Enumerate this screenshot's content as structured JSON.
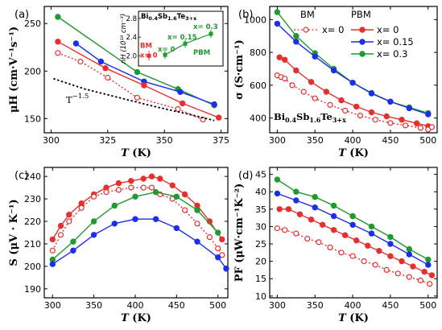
{
  "colors": {
    "BM": "#e53030",
    "PBM": "#e53030",
    "x0.15": "#1c2ee8",
    "x0.3": "#1e9a2e",
    "T15": "#000000"
  },
  "chart_data": [
    {
      "panel": "(a)",
      "type": "line",
      "xlabel": "T (K)",
      "ylabel": "μH (cm·V⁻¹s⁻¹)",
      "xlim": [
        297,
        378
      ],
      "ylim": [
        135,
        268
      ],
      "xticks": [
        300,
        325,
        350,
        375
      ],
      "yticks": [
        150,
        200,
        250
      ],
      "series": [
        {
          "name": "x= 0.3",
          "style": "solid",
          "marker": "filled",
          "color": "#1e9a2e",
          "x": [
            303,
            338,
            356,
            372
          ],
          "y": [
            257,
            199,
            181,
            164
          ]
        },
        {
          "name": "x= 0.15",
          "style": "solid",
          "marker": "filled",
          "color": "#1c2ee8",
          "x": [
            311,
            322,
            341,
            357,
            372
          ],
          "y": [
            229,
            210,
            189,
            178,
            165
          ]
        },
        {
          "name": "x= 0",
          "style": "solid",
          "marker": "filled",
          "color": "#e53030",
          "x": [
            303,
            324,
            341,
            358,
            374
          ],
          "y": [
            231,
            203,
            185,
            166,
            151
          ]
        },
        {
          "name": "BM x= 0",
          "style": "dotted",
          "marker": "open",
          "color": "#e53030",
          "x": [
            303,
            313,
            325,
            338,
            356,
            367
          ],
          "y": [
            219,
            210,
            193,
            172,
            160,
            149
          ]
        },
        {
          "name": "T^-1.5",
          "style": "dotted",
          "marker": "none",
          "color": "#000000",
          "x": [
            301,
            315,
            330,
            345,
            360,
            372
          ],
          "y": [
            192,
            181,
            172,
            163,
            155,
            148
          ]
        }
      ],
      "annotation": "T",
      "annotation_exp": "−1.5",
      "inset": {
        "title_main": "Bi",
        "title_s1": "0.4",
        "title_mid": "Sb",
        "title_s2": "1.6",
        "title_end": "Te",
        "title_s3": "3+x",
        "ylabel": "nH (10¹⁹ cm⁻³)",
        "ylim": [
          1.85,
          2.85
        ],
        "yticks": [
          "2.0",
          "2.4",
          "2.8"
        ],
        "bm_label": "BM",
        "bm_point": {
          "label": "x= 0",
          "y": 2.0
        },
        "pbm_label": "PBM",
        "pbm_points": [
          {
            "label": "x= 0",
            "y": 2.02
          },
          {
            "label": "x= 0.15",
            "y": 2.26
          },
          {
            "label": "x= 0.3",
            "y": 2.47
          }
        ]
      }
    },
    {
      "panel": "(b)",
      "type": "line",
      "xlabel": "T (K)",
      "ylabel": "σ (S·cm⁻¹)",
      "xlim": [
        290,
        512
      ],
      "ylim": [
        310,
        1080
      ],
      "xticks": [
        300,
        350,
        400,
        450,
        500
      ],
      "yticks": [
        400,
        600,
        800,
        1000
      ],
      "legend": {
        "bm_head": "BM",
        "pbm_head": "PBM",
        "bm_entry": "x= 0",
        "pbm_entries": [
          "x= 0",
          "x= 0.15",
          "x= 0.3"
        ]
      },
      "material_label": {
        "main": "Bi",
        "s1": "0.4",
        "mid": "Sb",
        "s2": "1.6",
        "end": "Te",
        "s3": "3+x"
      },
      "series": [
        {
          "name": "x= 0.3",
          "style": "solid",
          "marker": "filled",
          "color": "#1e9a2e",
          "x": [
            300,
            325,
            350,
            375,
            400,
            425,
            450,
            475,
            500
          ],
          "y": [
            1045,
            900,
            795,
            700,
            615,
            553,
            500,
            465,
            430
          ]
        },
        {
          "name": "x= 0.15",
          "style": "solid",
          "marker": "filled",
          "color": "#1c2ee8",
          "x": [
            300,
            325,
            350,
            375,
            400,
            425,
            450,
            475,
            500
          ],
          "y": [
            975,
            865,
            775,
            690,
            615,
            550,
            500,
            460,
            423
          ]
        },
        {
          "name": "x= 0",
          "style": "solid",
          "marker": "filled",
          "color": "#e53030",
          "x": [
            303,
            310,
            325,
            345,
            365,
            385,
            405,
            425,
            445,
            465,
            485,
            500
          ],
          "y": [
            770,
            755,
            690,
            620,
            560,
            508,
            470,
            435,
            410,
            390,
            368,
            350
          ]
        },
        {
          "name": "BM x= 0",
          "style": "dotted",
          "marker": "open",
          "color": "#e53030",
          "x": [
            300,
            305,
            310,
            320,
            335,
            350,
            370,
            390,
            410,
            430,
            450,
            470,
            490,
            500,
            505
          ],
          "y": [
            660,
            650,
            640,
            600,
            560,
            520,
            480,
            445,
            415,
            390,
            370,
            355,
            340,
            330,
            345
          ]
        }
      ]
    },
    {
      "panel": "(c)",
      "type": "line",
      "xlabel": "T (K)",
      "ylabel": "S (μV · K⁻¹)",
      "xlim": [
        290,
        512
      ],
      "ylim": [
        186,
        244
      ],
      "xticks": [
        300,
        350,
        400,
        450,
        500
      ],
      "yticks": [
        190,
        200,
        210,
        220,
        230,
        240
      ],
      "series": [
        {
          "name": "x= 0",
          "style": "solid",
          "marker": "filled",
          "color": "#e53030",
          "x": [
            300,
            310,
            320,
            335,
            350,
            365,
            380,
            395,
            410,
            420,
            430,
            445,
            460,
            475,
            490,
            505
          ],
          "y": [
            212,
            218,
            223,
            228,
            232,
            235,
            237,
            238,
            239,
            240,
            239,
            236,
            232,
            227,
            220,
            212
          ]
        },
        {
          "name": "BM x= 0",
          "style": "dotted",
          "marker": "open",
          "color": "#e53030",
          "x": [
            300,
            310,
            320,
            335,
            350,
            365,
            380,
            395,
            410,
            420,
            430,
            445,
            460,
            475,
            490,
            500,
            505
          ],
          "y": [
            207,
            214,
            220,
            226,
            231,
            233,
            234,
            235,
            235,
            235,
            232,
            230,
            225,
            219,
            213,
            208,
            205
          ]
        },
        {
          "name": "x= 0.3",
          "style": "solid",
          "marker": "filled",
          "color": "#1e9a2e",
          "x": [
            300,
            325,
            350,
            375,
            400,
            425,
            450,
            475,
            500
          ],
          "y": [
            203,
            211,
            220,
            227,
            231,
            233,
            231,
            225,
            215
          ]
        },
        {
          "name": "x= 0.15",
          "style": "solid",
          "marker": "filled",
          "color": "#1c2ee8",
          "x": [
            300,
            325,
            350,
            375,
            400,
            425,
            450,
            475,
            500,
            510
          ],
          "y": [
            201,
            207,
            214,
            219,
            221,
            221,
            217,
            211,
            204,
            199
          ]
        }
      ]
    },
    {
      "panel": "(d)",
      "type": "line",
      "xlabel": "T (K)",
      "ylabel": "PF (μW·cm⁻¹K⁻²)",
      "xlim": [
        290,
        512
      ],
      "ylim": [
        9.5,
        47
      ],
      "xticks": [
        300,
        350,
        400,
        450,
        500
      ],
      "yticks": [
        10,
        15,
        20,
        25,
        30,
        35,
        40,
        45
      ],
      "series": [
        {
          "name": "x= 0.3",
          "style": "solid",
          "marker": "filled",
          "color": "#1e9a2e",
          "x": [
            300,
            325,
            350,
            375,
            400,
            425,
            450,
            475,
            500
          ],
          "y": [
            43.5,
            40.0,
            38.5,
            36.0,
            33.0,
            30.0,
            27.0,
            23.5,
            20.5
          ]
        },
        {
          "name": "x= 0.15",
          "style": "solid",
          "marker": "filled",
          "color": "#1c2ee8",
          "x": [
            300,
            325,
            350,
            375,
            400,
            425,
            450,
            475,
            500
          ],
          "y": [
            39.5,
            37.5,
            35.5,
            33.0,
            30.5,
            28.0,
            25.0,
            22.0,
            19.0
          ]
        },
        {
          "name": "x= 0",
          "style": "solid",
          "marker": "filled",
          "color": "#e53030",
          "x": [
            303,
            315,
            330,
            345,
            360,
            375,
            390,
            405,
            420,
            435,
            450,
            465,
            480,
            495,
            505
          ],
          "y": [
            35.0,
            35.0,
            33.5,
            32.0,
            30.5,
            29.0,
            27.5,
            26.0,
            24.5,
            23.0,
            21.5,
            20.0,
            18.5,
            17.0,
            16.0
          ]
        },
        {
          "name": "BM x= 0",
          "style": "dotted",
          "marker": "open",
          "color": "#e53030",
          "x": [
            300,
            310,
            325,
            340,
            355,
            370,
            385,
            400,
            415,
            430,
            445,
            460,
            475,
            490,
            502
          ],
          "y": [
            29.5,
            29.0,
            28.0,
            26.5,
            25.5,
            24.0,
            22.5,
            21.5,
            20.0,
            19.0,
            17.5,
            16.5,
            15.5,
            14.5,
            13.5
          ]
        }
      ]
    }
  ]
}
